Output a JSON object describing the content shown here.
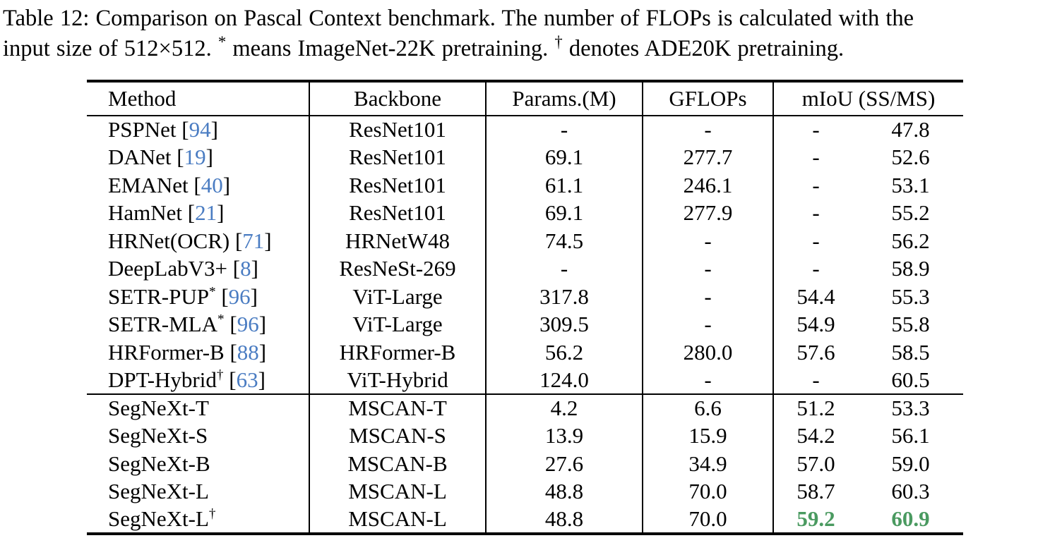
{
  "colors": {
    "citation_blue": "#4a7cc2",
    "highlight_green": "#4a9a60",
    "text": "#000000",
    "background": "#ffffff"
  },
  "caption": {
    "line1": [
      {
        "t": "Table 12: Comparison on Pascal Context benchmark. The number of FLOPs is calculated with the"
      }
    ],
    "line2": [
      {
        "t": "input size of 512×512. "
      },
      {
        "t": "*",
        "sup": true
      },
      {
        "t": " means ImageNet-22K pretraining. "
      },
      {
        "t": "†",
        "sup": true
      },
      {
        "t": " denotes ADE20K pretraining."
      }
    ]
  },
  "table": {
    "headers": {
      "method": "Method",
      "backbone": "Backbone",
      "params": "Params.(M)",
      "gflops": "GFLOPs",
      "miou": "mIoU (SS/MS)"
    },
    "sections": [
      {
        "rows": [
          {
            "method": "PSPNet",
            "sup": "",
            "cite": "94",
            "backbone": "ResNet101",
            "params": "-",
            "gflops": "-",
            "ss": "-",
            "ms": "47.8",
            "highlight": false
          },
          {
            "method": "DANet",
            "sup": "",
            "cite": "19",
            "backbone": "ResNet101",
            "params": "69.1",
            "gflops": "277.7",
            "ss": "-",
            "ms": "52.6",
            "highlight": false
          },
          {
            "method": "EMANet",
            "sup": "",
            "cite": "40",
            "backbone": "ResNet101",
            "params": "61.1",
            "gflops": "246.1",
            "ss": "-",
            "ms": "53.1",
            "highlight": false
          },
          {
            "method": "HamNet",
            "sup": "",
            "cite": "21",
            "backbone": "ResNet101",
            "params": "69.1",
            "gflops": "277.9",
            "ss": "-",
            "ms": "55.2",
            "highlight": false
          },
          {
            "method": "HRNet(OCR)",
            "sup": "",
            "cite": "71",
            "backbone": "HRNetW48",
            "params": "74.5",
            "gflops": "-",
            "ss": "-",
            "ms": "56.2",
            "highlight": false
          },
          {
            "method": "DeepLabV3+",
            "sup": "",
            "cite": "8",
            "backbone": "ResNeSt-269",
            "params": "-",
            "gflops": "-",
            "ss": "-",
            "ms": "58.9",
            "highlight": false
          },
          {
            "method": "SETR-PUP",
            "sup": "*",
            "cite": "96",
            "backbone": "ViT-Large",
            "params": "317.8",
            "gflops": "-",
            "ss": "54.4",
            "ms": "55.3",
            "highlight": false
          },
          {
            "method": "SETR-MLA",
            "sup": "*",
            "cite": "96",
            "backbone": "ViT-Large",
            "params": "309.5",
            "gflops": "-",
            "ss": "54.9",
            "ms": "55.8",
            "highlight": false
          },
          {
            "method": "HRFormer-B",
            "sup": "",
            "cite": "88",
            "backbone": "HRFormer-B",
            "params": "56.2",
            "gflops": "280.0",
            "ss": "57.6",
            "ms": "58.5",
            "highlight": false
          },
          {
            "method": "DPT-Hybrid",
            "sup": "†",
            "cite": "63",
            "backbone": "ViT-Hybrid",
            "params": "124.0",
            "gflops": "-",
            "ss": "-",
            "ms": "60.5",
            "highlight": false
          }
        ]
      },
      {
        "rows": [
          {
            "method": "SegNeXt-T",
            "sup": "",
            "cite": "",
            "backbone": "MSCAN-T",
            "params": "4.2",
            "gflops": "6.6",
            "ss": "51.2",
            "ms": "53.3",
            "highlight": false
          },
          {
            "method": "SegNeXt-S",
            "sup": "",
            "cite": "",
            "backbone": "MSCAN-S",
            "params": "13.9",
            "gflops": "15.9",
            "ss": "54.2",
            "ms": "56.1",
            "highlight": false
          },
          {
            "method": "SegNeXt-B",
            "sup": "",
            "cite": "",
            "backbone": "MSCAN-B",
            "params": "27.6",
            "gflops": "34.9",
            "ss": "57.0",
            "ms": "59.0",
            "highlight": false
          },
          {
            "method": "SegNeXt-L",
            "sup": "",
            "cite": "",
            "backbone": "MSCAN-L",
            "params": "48.8",
            "gflops": "70.0",
            "ss": "58.7",
            "ms": "60.3",
            "highlight": false
          },
          {
            "method": "SegNeXt-L",
            "sup": "†",
            "cite": "",
            "backbone": "MSCAN-L",
            "params": "48.8",
            "gflops": "70.0",
            "ss": "59.2",
            "ms": "60.9",
            "highlight": true
          }
        ]
      }
    ]
  }
}
